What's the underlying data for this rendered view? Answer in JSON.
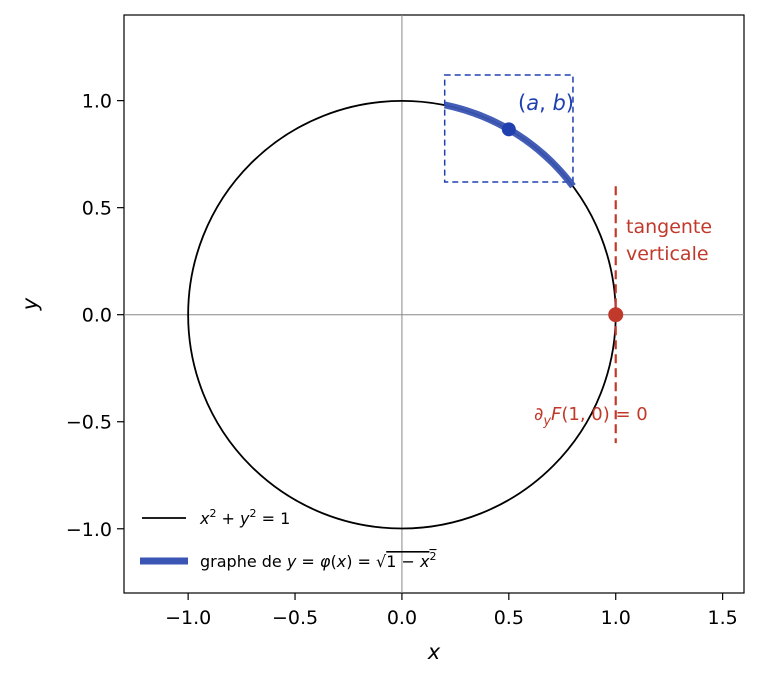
{
  "chart_data": {
    "type": "line",
    "xlabel": "x",
    "ylabel": "y",
    "xlim": [
      -1.3,
      1.6
    ],
    "ylim": [
      -1.3,
      1.4
    ],
    "x_ticks": [
      -1.0,
      -0.5,
      0.0,
      0.5,
      1.0,
      1.5
    ],
    "x_tick_labels": [
      "−1.0",
      "−0.5",
      "0.0",
      "0.5",
      "1.0",
      "1.5"
    ],
    "y_ticks": [
      -1.0,
      -0.5,
      0.0,
      0.5,
      1.0
    ],
    "y_tick_labels": [
      "−1.0",
      "−0.5",
      "0.0",
      "0.5",
      "1.0"
    ],
    "grid": false,
    "legend_position": "lower-left",
    "series": [
      {
        "name": "x² + y² = 1",
        "kind": "circle",
        "center": [
          0,
          0
        ],
        "radius": 1,
        "color": "#000000"
      },
      {
        "name": "graphe de y = φ(x) = √(1 − x²)",
        "kind": "arc",
        "x_range": [
          0.2,
          0.8
        ],
        "color": "#3a55b4"
      }
    ],
    "points": [
      {
        "label": "(a, b)",
        "x": 0.5,
        "y": 0.866,
        "color": "#2040b0"
      },
      {
        "label": "",
        "x": 1.0,
        "y": 0.0,
        "color": "#c0392b"
      }
    ],
    "box": {
      "x0": 0.2,
      "x1": 0.8,
      "y0": 0.62,
      "y1": 1.12,
      "color": "#2040b0"
    },
    "vertical_line": {
      "x": 1.0,
      "y0": -0.6,
      "y1": 0.6,
      "color": "#c0392b"
    },
    "annotations": {
      "tangent_line1": "tangente",
      "tangent_line2": "verticale",
      "partial": "∂yF(1, 0) = 0",
      "point_ab": "(a, b)"
    }
  },
  "colors": {
    "axis_lines": "#888888",
    "circle": "#000000",
    "arc": "#3a55b4",
    "blue": "#2040b0",
    "red": "#c0392b"
  }
}
